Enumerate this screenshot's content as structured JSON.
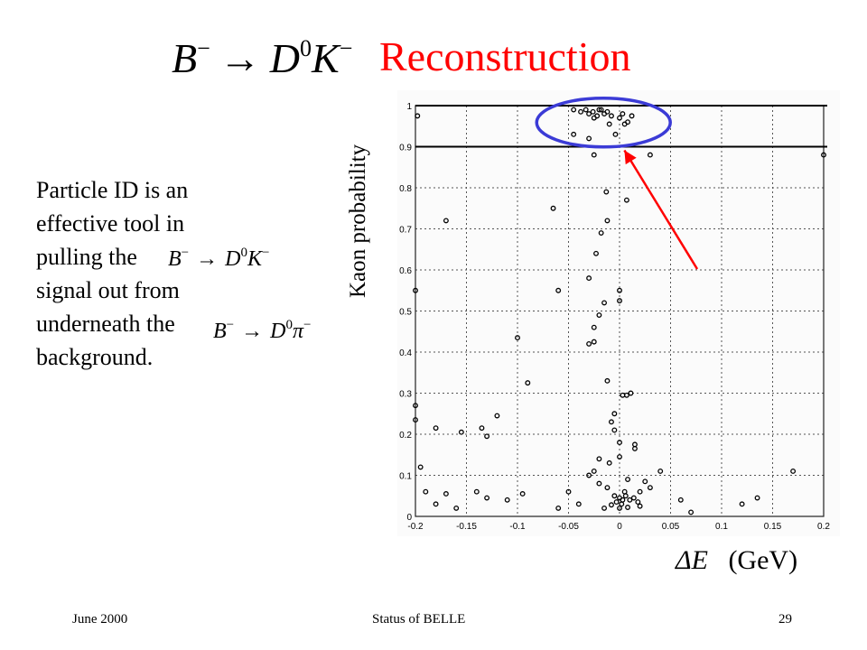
{
  "slide": {
    "formula_title": {
      "lhs": "B",
      "lhs_sup": "−",
      "arrow": "→",
      "p1": "D",
      "p1_sup": "0",
      "p2": "K",
      "p2_sup": "−"
    },
    "title": "Reconstruction",
    "body_lines": [
      "Particle ID is an",
      "effective tool in",
      "pulling the",
      "signal out from",
      "underneath the",
      "background."
    ],
    "formula_signal": {
      "lhs": "B",
      "lhs_sup": "−",
      "arrow": "→",
      "p1": "D",
      "p1_sup": "0",
      "p2": "K",
      "p2_sup": "−"
    },
    "formula_background": {
      "lhs": "B",
      "lhs_sup": "−",
      "arrow": "→",
      "p1": "D",
      "p1_sup": "0",
      "p2": "π",
      "p2_sup": "−"
    },
    "annotation_formula": {
      "lhs": "B",
      "lhs_sup": "−",
      "arrow": "→",
      "p1": "D",
      "p1_sup": "0",
      "p2": "K",
      "p2_sup": "−"
    },
    "footer_left": "June 2000",
    "footer_center": "Status of BELLE",
    "footer_right": "29",
    "colors": {
      "title": "#ff0000",
      "arrow": "#ff0000",
      "ellipse": "#3b3bd6"
    }
  },
  "chart_data": {
    "type": "scatter",
    "ylabel": "Kaon probability",
    "xlabel_symbol": "ΔE",
    "xlabel_unit": "(GeV)",
    "xlim": [
      -0.2,
      0.2
    ],
    "ylim": [
      0,
      1
    ],
    "xticks": [
      "-0.2",
      "-0.15",
      "-0.1",
      "-0.05",
      "0",
      "0.05",
      "0.1",
      "0.15",
      "0.2"
    ],
    "yticks": [
      "0",
      "0.1",
      "0.2",
      "0.3",
      "0.4",
      "0.5",
      "0.6",
      "0.7",
      "0.8",
      "0.9",
      "1"
    ],
    "grid": true,
    "cut_lines": [
      1.0,
      0.9
    ],
    "highlight_region": {
      "x": [
        -0.045,
        0.01
      ],
      "y": [
        0.9,
        1.0
      ]
    },
    "points": [
      [
        -0.045,
        0.99
      ],
      [
        -0.038,
        0.985
      ],
      [
        -0.033,
        0.99
      ],
      [
        -0.03,
        0.98
      ],
      [
        -0.026,
        0.985
      ],
      [
        -0.022,
        0.975
      ],
      [
        -0.018,
        0.99
      ],
      [
        -0.015,
        0.98
      ],
      [
        -0.012,
        0.985
      ],
      [
        -0.02,
        0.99
      ],
      [
        -0.008,
        0.975
      ],
      [
        0.0,
        0.97
      ],
      [
        0.003,
        0.98
      ],
      [
        0.008,
        0.96
      ],
      [
        -0.01,
        0.955
      ],
      [
        0.005,
        0.955
      ],
      [
        -0.025,
        0.97
      ],
      [
        -0.004,
        0.93
      ],
      [
        -0.045,
        0.93
      ],
      [
        0.012,
        0.975
      ],
      [
        -0.03,
        0.92
      ],
      [
        0.03,
        0.88
      ],
      [
        0.2,
        0.88
      ],
      [
        -0.198,
        0.975
      ],
      [
        -0.025,
        0.88
      ],
      [
        -0.013,
        0.79
      ],
      [
        0.007,
        0.77
      ],
      [
        -0.065,
        0.75
      ],
      [
        -0.012,
        0.72
      ],
      [
        -0.17,
        0.72
      ],
      [
        -0.018,
        0.69
      ],
      [
        -0.023,
        0.64
      ],
      [
        -0.03,
        0.58
      ],
      [
        0.0,
        0.55
      ],
      [
        -0.015,
        0.52
      ],
      [
        0.0,
        0.525
      ],
      [
        -0.2,
        0.55
      ],
      [
        -0.02,
        0.49
      ],
      [
        -0.06,
        0.55
      ],
      [
        -0.025,
        0.46
      ],
      [
        -0.03,
        0.42
      ],
      [
        -0.025,
        0.425
      ],
      [
        -0.1,
        0.435
      ],
      [
        -0.012,
        0.33
      ],
      [
        -0.09,
        0.325
      ],
      [
        0.003,
        0.295
      ],
      [
        0.007,
        0.295
      ],
      [
        0.011,
        0.3
      ],
      [
        -0.2,
        0.27
      ],
      [
        -0.2,
        0.235
      ],
      [
        -0.005,
        0.25
      ],
      [
        -0.008,
        0.23
      ],
      [
        -0.18,
        0.215
      ],
      [
        -0.155,
        0.205
      ],
      [
        -0.135,
        0.215
      ],
      [
        -0.13,
        0.195
      ],
      [
        -0.12,
        0.245
      ],
      [
        -0.005,
        0.21
      ],
      [
        0.0,
        0.18
      ],
      [
        0.015,
        0.175
      ],
      [
        0.015,
        0.165
      ],
      [
        -0.02,
        0.14
      ],
      [
        0.0,
        0.145
      ],
      [
        -0.01,
        0.13
      ],
      [
        -0.025,
        0.11
      ],
      [
        0.008,
        0.09
      ],
      [
        -0.02,
        0.08
      ],
      [
        -0.03,
        0.1
      ],
      [
        0.04,
        0.11
      ],
      [
        -0.19,
        0.06
      ],
      [
        -0.17,
        0.055
      ],
      [
        -0.14,
        0.06
      ],
      [
        -0.13,
        0.045
      ],
      [
        -0.095,
        0.055
      ],
      [
        -0.05,
        0.06
      ],
      [
        -0.04,
        0.03
      ],
      [
        -0.012,
        0.07
      ],
      [
        -0.005,
        0.05
      ],
      [
        0.0,
        0.045
      ],
      [
        0.003,
        0.04
      ],
      [
        0.006,
        0.05
      ],
      [
        0.01,
        0.04
      ],
      [
        0.014,
        0.045
      ],
      [
        0.018,
        0.035
      ],
      [
        0.005,
        0.06
      ],
      [
        0.002,
        0.03
      ],
      [
        -0.003,
        0.035
      ],
      [
        -0.008,
        0.028
      ],
      [
        0.0,
        0.02
      ],
      [
        0.008,
        0.022
      ],
      [
        -0.015,
        0.02
      ],
      [
        0.02,
        0.025
      ],
      [
        0.03,
        0.07
      ],
      [
        0.06,
        0.04
      ],
      [
        0.07,
        0.01
      ],
      [
        0.12,
        0.03
      ],
      [
        0.135,
        0.045
      ],
      [
        0.17,
        0.11
      ],
      [
        -0.18,
        0.03
      ],
      [
        -0.16,
        0.02
      ],
      [
        -0.06,
        0.02
      ],
      [
        0.02,
        0.06
      ],
      [
        0.025,
        0.085
      ],
      [
        -0.11,
        0.04
      ],
      [
        -0.195,
        0.12
      ]
    ]
  }
}
